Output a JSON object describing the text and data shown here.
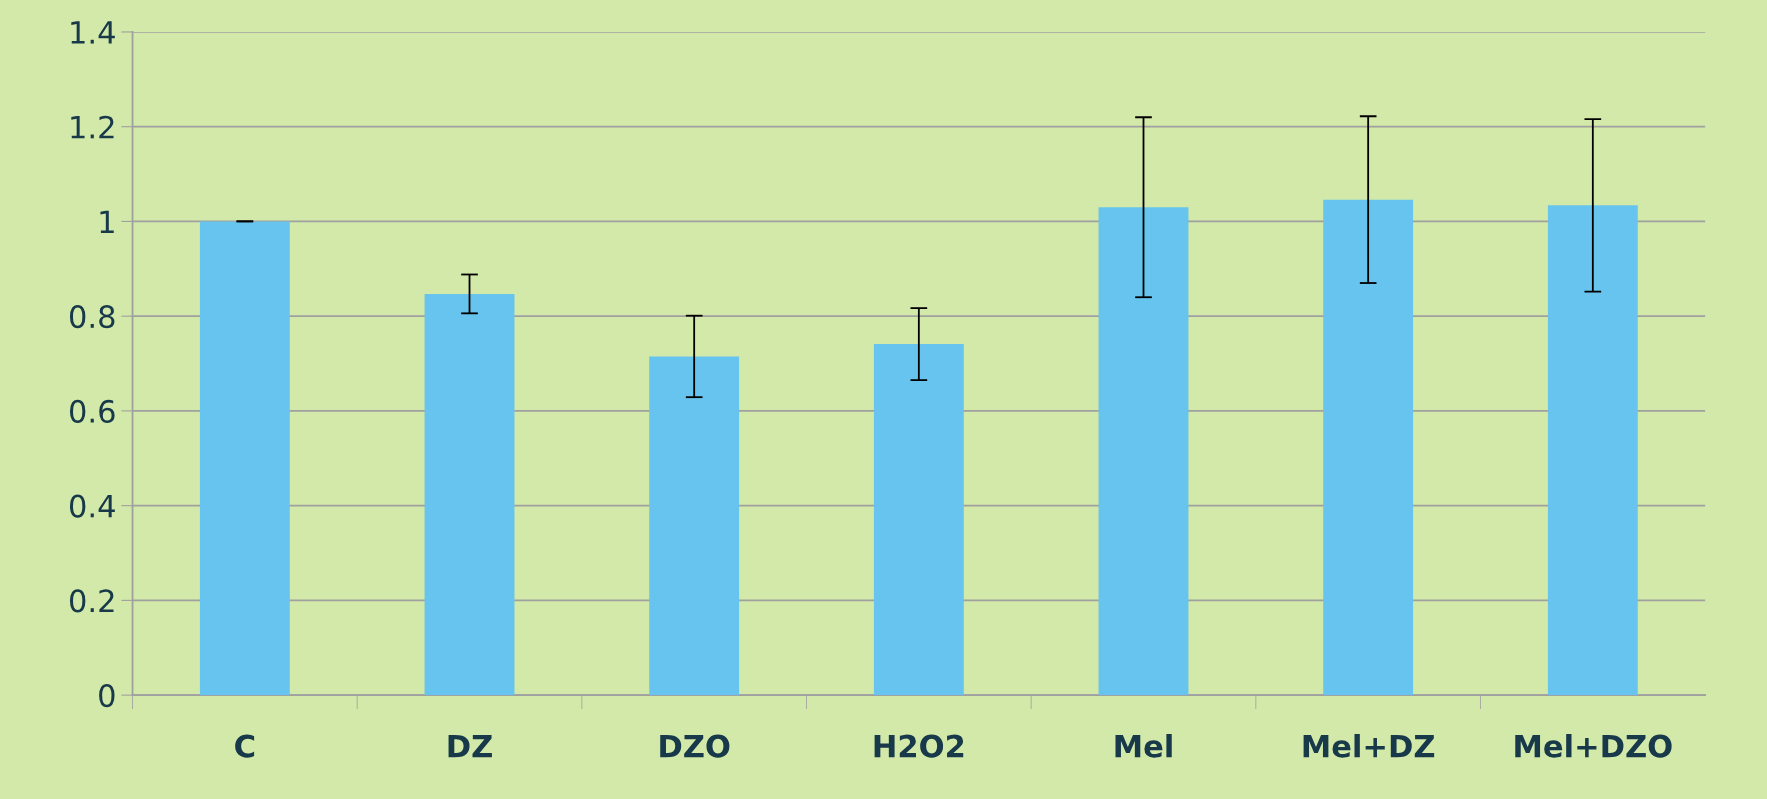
{
  "chart_data": {
    "type": "bar",
    "categories": [
      "C",
      "DZ",
      "DZO",
      "H2O2",
      "Mel",
      "Mel+DZ",
      "Mel+DZO"
    ],
    "values": [
      1.0,
      0.847,
      0.715,
      0.741,
      1.03,
      1.046,
      1.034
    ],
    "errors": [
      0,
      0.041,
      0.086,
      0.076,
      0.19,
      0.176,
      0.182
    ],
    "color": "#66c4ee",
    "ylim": [
      0,
      1.4
    ],
    "yticks": [
      0,
      0.2,
      0.4,
      0.6,
      0.8,
      1,
      1.2,
      1.4
    ],
    "grid": "y"
  }
}
